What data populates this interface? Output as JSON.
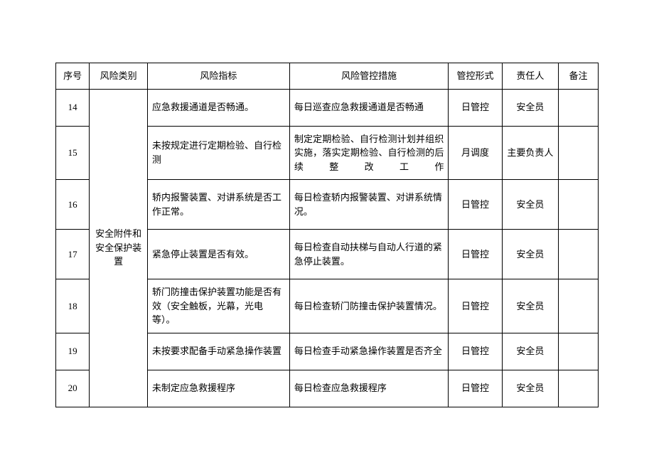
{
  "headers": {
    "seq": "序号",
    "category": "风险类别",
    "indicator": "风险指标",
    "measure": "风险管控措施",
    "ctrl": "管控形式",
    "resp": "责任人",
    "remark": "备注"
  },
  "categoryLabel": "安全附件和安全保护装置",
  "rows": [
    {
      "seq": "14",
      "indicator": "应急救援通道是否畅通。",
      "measure": "每日巡查应急救援通道是否畅通",
      "ctrl": "日管控",
      "resp": "安全员",
      "remark": ""
    },
    {
      "seq": "15",
      "indicator": "未按规定进行定期检验、自行检测",
      "measure": "制定定期检验、自行检测计划并组织实施，落实定期检验、自行检测的后续整改工作",
      "ctrl": "月调度",
      "resp": "主要负责人",
      "remark": ""
    },
    {
      "seq": "16",
      "indicator": "轿内报警装置、对讲系统是否工作正常。",
      "measure": "每日检查轿内报警装置、对讲系统情况。",
      "ctrl": "日管控",
      "resp": "安全员",
      "remark": ""
    },
    {
      "seq": "17",
      "indicator": "紧急停止装置是否有效。",
      "measure": "每日检查自动扶梯与自动人行道的紧急停止装置。",
      "ctrl": "日管控",
      "resp": "安全员",
      "remark": ""
    },
    {
      "seq": "18",
      "indicator": "轿门防撞击保护装置功能是否有效（安全触板，光幕，光电等）。",
      "measure": "每日检查轿门防撞击保护装置情况。",
      "ctrl": "日管控",
      "resp": "安全员",
      "remark": ""
    },
    {
      "seq": "19",
      "indicator": "未按要求配备手动紧急操作装置",
      "measure": "每日检查手动紧急操作装置是否齐全",
      "ctrl": "日管控",
      "resp": "安全员",
      "remark": ""
    },
    {
      "seq": "20",
      "indicator": "未制定应急救援程序",
      "measure": "每日检查应急救援程序",
      "ctrl": "日管控",
      "resp": "安全员",
      "remark": ""
    }
  ],
  "styling": {
    "border_color": "#000000",
    "background_color": "#ffffff",
    "text_color": "#000000",
    "font_size": 13,
    "font_family": "SimSun"
  }
}
